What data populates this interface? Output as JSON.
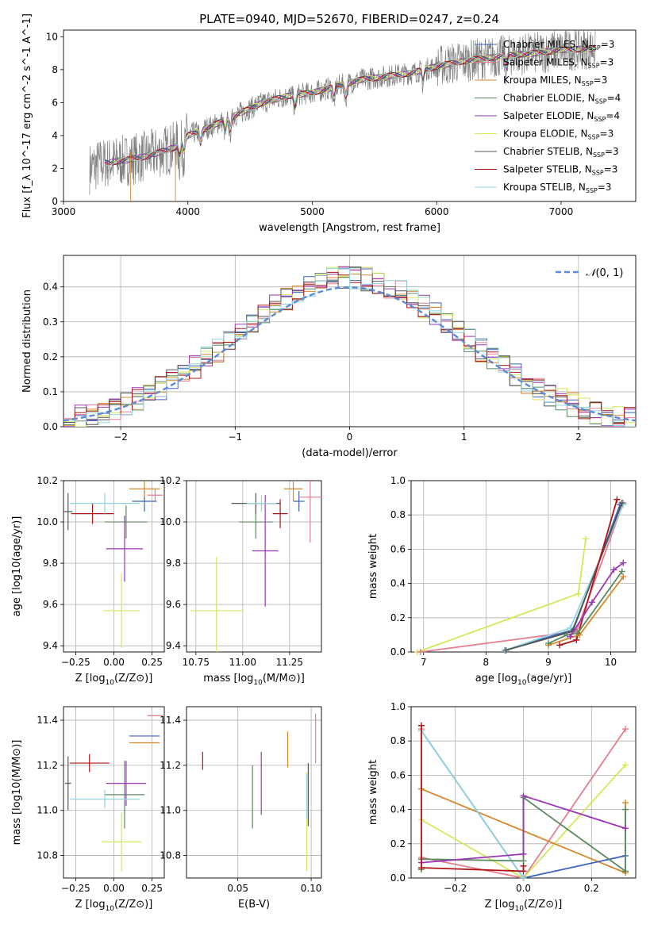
{
  "figure": {
    "title": "PLATE=0940, MJD=52670, FIBERID=0247, z=0.24"
  },
  "models": [
    {
      "name": "Chabrier MILES, N_SSP=3",
      "prefix": "Chabrier MILES, N",
      "sub": "SSP",
      "suffix": "=3",
      "color": "#3a63c0"
    },
    {
      "name": "Salpeter MILES, N_SSP=3",
      "prefix": "Salpeter MILES, N",
      "sub": "SSP",
      "suffix": "=3",
      "color": "#e77c8e"
    },
    {
      "name": "Kroupa MILES, N_SSP=3",
      "prefix": "Kroupa MILES, N",
      "sub": "SSP",
      "suffix": "=3",
      "color": "#d7872a"
    },
    {
      "name": "Chabrier ELODIE, N_SSP=4",
      "prefix": "Chabrier ELODIE, N",
      "sub": "SSP",
      "suffix": "=4",
      "color": "#5b8a61"
    },
    {
      "name": "Salpeter ELODIE, N_SSP=4",
      "prefix": "Salpeter ELODIE, N",
      "sub": "SSP",
      "suffix": "=4",
      "color": "#9b37b7"
    },
    {
      "name": "Kroupa ELODIE, N_SSP=3",
      "prefix": "Kroupa ELODIE, N",
      "sub": "SSP",
      "suffix": "=3",
      "color": "#d4e85a"
    },
    {
      "name": "Chabrier STELIB, N_SSP=3",
      "prefix": "Chabrier STELIB, N",
      "sub": "SSP",
      "suffix": "=3",
      "color": "#555555"
    },
    {
      "name": "Salpeter STELIB, N_SSP=3",
      "prefix": "Salpeter STELIB, N",
      "sub": "SSP",
      "suffix": "=3",
      "color": "#b01515"
    },
    {
      "name": "Kroupa STELIB, N_SSP=3",
      "prefix": "Kroupa STELIB, N",
      "sub": "SSP",
      "suffix": "=3",
      "color": "#8fd4e0"
    }
  ],
  "chart_data": [
    {
      "id": "spectrum",
      "type": "line",
      "title": "PLATE=0940, MJD=52670, FIBERID=0247, z=0.24",
      "xlabel": "wavelength [Angstrom, rest frame]",
      "ylabel": "Flux [f_λ 10^-17 erg cm^-2 s^-1 A^-1]",
      "xlim": [
        3000,
        7600
      ],
      "ylim": [
        0,
        10.4
      ],
      "xticks": [
        3000,
        4000,
        5000,
        6000,
        7000
      ],
      "yticks": [
        0,
        2,
        4,
        6,
        8,
        10
      ],
      "grid": false,
      "legend": "upper right",
      "data_series": {
        "name": "data",
        "color": "#808080",
        "wavelength_range": [
          3210,
          7280
        ]
      },
      "model_continuum": {
        "x": [
          3210,
          3300,
          3500,
          3700,
          3900,
          4000,
          4200,
          4400,
          4600,
          4800,
          5000,
          5200,
          5400,
          5600,
          5800,
          6000,
          6200,
          6400,
          6600,
          6800,
          7000,
          7280
        ],
        "y": [
          2.0,
          2.3,
          2.5,
          2.8,
          3.3,
          4.0,
          4.6,
          5.3,
          6.0,
          6.4,
          6.6,
          7.0,
          7.4,
          7.6,
          7.8,
          8.2,
          8.5,
          8.7,
          8.9,
          9.0,
          9.2,
          9.3
        ]
      }
    },
    {
      "id": "residuals",
      "type": "histogram",
      "xlabel": "(data-model)/error",
      "ylabel": "Normed distribution",
      "xlim": [
        -2.5,
        2.5
      ],
      "ylim": [
        0,
        0.49
      ],
      "xticks": [
        -2,
        -1,
        0,
        1,
        2
      ],
      "yticks": [
        0.0,
        0.1,
        0.2,
        0.3,
        0.4
      ],
      "grid": true,
      "legend": "upper right",
      "normal_curve": {
        "label": "N(0,1)",
        "label_script": "𝒩",
        "label_args": "(0, 1)",
        "color": "#5b8bd6",
        "mean": 0,
        "sigma": 1
      },
      "bin_width": 0.1
    },
    {
      "id": "age_vs_Z",
      "type": "errorbar",
      "xlabel": "Z [log10(Z/Z⊙)]",
      "xlabel_main": "Z [log",
      "xlabel_sub": "10",
      "xlabel_tail": "(Z/Z⊙)]",
      "ylabel": "age [log10(age/yr)]",
      "xlim": [
        -0.33,
        0.33
      ],
      "ylim": [
        9.37,
        10.2
      ],
      "xticks": [
        -0.25,
        0.0,
        0.25
      ],
      "xticklabels": [
        "−0.25",
        "0.00",
        "0.25"
      ],
      "yticks": [
        9.4,
        9.6,
        9.8,
        10.0,
        10.2
      ],
      "yticklabels": [
        "9.4",
        "9.6",
        "9.8",
        "10.0",
        "10.2"
      ],
      "points": [
        {
          "model": 0,
          "x": 0.2,
          "xerr": 0.08,
          "y": 10.1,
          "yerr": 0.05
        },
        {
          "model": 1,
          "x": 0.27,
          "xerr": 0.05,
          "y": 10.13,
          "yerr": 0.03
        },
        {
          "model": 2,
          "x": 0.2,
          "xerr": 0.1,
          "y": 10.16,
          "yerr": 0.04
        },
        {
          "model": 3,
          "x": 0.08,
          "xerr": 0.14,
          "y": 10.0,
          "yerr": 0.08
        },
        {
          "model": 4,
          "x": 0.07,
          "xerr": 0.12,
          "y": 9.87,
          "yerr": 0.16
        },
        {
          "model": 5,
          "x": 0.05,
          "xerr": 0.12,
          "y": 9.57,
          "yerr": 0.18
        },
        {
          "model": 6,
          "x": -0.3,
          "xerr": 0.03,
          "y": 10.05,
          "yerr": 0.09
        },
        {
          "model": 7,
          "x": -0.14,
          "xerr": 0.14,
          "y": 10.04,
          "yerr": 0.05
        },
        {
          "model": 8,
          "x": -0.06,
          "xerr": 0.23,
          "y": 10.09,
          "yerr": 0.05
        }
      ]
    },
    {
      "id": "age_vs_mass",
      "type": "errorbar",
      "xlabel": "mass [log10(M/M⊙)]",
      "xlabel_main": "mass [log",
      "xlabel_sub": "10",
      "xlabel_tail": "(M/M⊙)]",
      "ylabel": "",
      "xlim": [
        10.7,
        11.42
      ],
      "ylim": [
        9.37,
        10.2
      ],
      "xticks": [
        10.75,
        11.0,
        11.25
      ],
      "xticklabels": [
        "10.75",
        "11.00",
        "11.25"
      ],
      "yticks": [
        9.4,
        9.6,
        9.8,
        10.0,
        10.2
      ],
      "yticklabels": [
        "9.4",
        "9.6",
        "9.8",
        "10.0",
        "10.2"
      ],
      "points": [
        {
          "model": 0,
          "x": 11.3,
          "xerr": 0.03,
          "y": 10.1,
          "yerr": 0.05
        },
        {
          "model": 1,
          "x": 11.36,
          "xerr": 0.06,
          "y": 10.12,
          "yerr": 0.22
        },
        {
          "model": 2,
          "x": 11.27,
          "xerr": 0.05,
          "y": 10.16,
          "yerr": 0.06
        },
        {
          "model": 3,
          "x": 11.07,
          "xerr": 0.09,
          "y": 10.0,
          "yerr": 0.08
        },
        {
          "model": 4,
          "x": 11.12,
          "xerr": 0.07,
          "y": 9.86,
          "yerr": 0.27
        },
        {
          "model": 5,
          "x": 10.86,
          "xerr": 0.14,
          "y": 9.57,
          "yerr": 0.26
        },
        {
          "model": 6,
          "x": 11.07,
          "xerr": 0.13,
          "y": 10.09,
          "yerr": 0.05
        },
        {
          "model": 7,
          "x": 11.2,
          "xerr": 0.04,
          "y": 10.04,
          "yerr": 0.07
        },
        {
          "model": 8,
          "x": 11.1,
          "xerr": 0.08,
          "y": 10.09,
          "yerr": 0.04
        }
      ]
    },
    {
      "id": "massweight_vs_age",
      "type": "line",
      "xlabel": "age [log10(age/yr)]",
      "xlabel_main": "age  [log",
      "xlabel_sub": "10",
      "xlabel_tail": "(age/yr)]",
      "ylabel": "mass weight",
      "xlim": [
        6.8,
        10.4
      ],
      "ylim": [
        0,
        1
      ],
      "xticks": [
        7,
        8,
        9,
        10
      ],
      "xticklabels": [
        "7",
        "8",
        "9",
        "10"
      ],
      "yticks": [
        0.0,
        0.2,
        0.4,
        0.6,
        0.8,
        1.0
      ],
      "yticklabels": [
        "0.0",
        "0.2",
        "0.4",
        "0.6",
        "0.8",
        "1.0"
      ],
      "grid": true,
      "series": [
        {
          "model": 5,
          "x": [
            6.9,
            9.48,
            9.6
          ],
          "y": [
            0.0,
            0.34,
            0.66
          ]
        },
        {
          "model": 1,
          "x": [
            6.95,
            9.45,
            10.2
          ],
          "y": [
            0.0,
            0.12,
            0.87
          ]
        },
        {
          "model": 0,
          "x": [
            8.3,
            9.4,
            10.15
          ],
          "y": [
            0.01,
            0.13,
            0.86
          ]
        },
        {
          "model": 8,
          "x": [
            8.3,
            9.35,
            10.2
          ],
          "y": [
            0.01,
            0.14,
            0.86
          ]
        },
        {
          "model": 6,
          "x": [
            8.32,
            9.38,
            10.18
          ],
          "y": [
            0.01,
            0.12,
            0.87
          ]
        },
        {
          "model": 7,
          "x": [
            9.18,
            9.45,
            10.1
          ],
          "y": [
            0.04,
            0.07,
            0.89
          ]
        },
        {
          "model": 2,
          "x": [
            9.0,
            9.5,
            10.2
          ],
          "y": [
            0.04,
            0.1,
            0.44
          ]
        },
        {
          "model": 3,
          "x": [
            9.0,
            9.3,
            9.47,
            10.18
          ],
          "y": [
            0.05,
            0.1,
            0.11,
            0.47
          ]
        },
        {
          "model": 4,
          "x": [
            9.35,
            9.7,
            10.05,
            10.2
          ],
          "y": [
            0.09,
            0.29,
            0.48,
            0.52
          ]
        }
      ]
    },
    {
      "id": "mass_vs_Z",
      "type": "errorbar",
      "xlabel": "Z [log10(Z/Z⊙)]",
      "xlabel_main": "Z [log",
      "xlabel_sub": "10",
      "xlabel_tail": "(Z/Z⊙)]",
      "ylabel": "mass [log10(M/M⊙)]",
      "xlim": [
        -0.33,
        0.33
      ],
      "ylim": [
        10.7,
        11.46
      ],
      "xticks": [
        -0.25,
        0.0,
        0.25
      ],
      "xticklabels": [
        "−0.25",
        "0.00",
        "0.25"
      ],
      "yticks": [
        10.8,
        11.0,
        11.2,
        11.4
      ],
      "yticklabels": [
        "10.8",
        "11.0",
        "11.2",
        "11.4"
      ],
      "points": [
        {
          "model": 0,
          "x": 0.2,
          "xerr": 0.1,
          "y": 11.33,
          "yerr": 0.0
        },
        {
          "model": 1,
          "x": 0.27,
          "xerr": 0.05,
          "y": 11.42,
          "yerr": 0.0
        },
        {
          "model": 2,
          "x": 0.2,
          "xerr": 0.1,
          "y": 11.3,
          "yerr": 0.0
        },
        {
          "model": 3,
          "x": 0.07,
          "xerr": 0.13,
          "y": 11.07,
          "yerr": 0.15
        },
        {
          "model": 4,
          "x": 0.08,
          "xerr": 0.13,
          "y": 11.12,
          "yerr": 0.1
        },
        {
          "model": 5,
          "x": 0.05,
          "xerr": 0.13,
          "y": 10.86,
          "yerr": 0.13
        },
        {
          "model": 6,
          "x": -0.3,
          "xerr": 0.02,
          "y": 11.12,
          "yerr": 0.12
        },
        {
          "model": 7,
          "x": -0.16,
          "xerr": 0.13,
          "y": 11.21,
          "yerr": 0.04
        },
        {
          "model": 8,
          "x": -0.06,
          "xerr": 0.23,
          "y": 11.05,
          "yerr": 0.04
        }
      ]
    },
    {
      "id": "mass_vs_EBV",
      "type": "errorbar",
      "xlabel": "E(B-V)",
      "ylabel": "",
      "xlim": [
        0.015,
        0.107
      ],
      "ylim": [
        10.7,
        11.46
      ],
      "xticks": [
        0.05,
        0.1
      ],
      "xticklabels": [
        "0.05",
        "0.10"
      ],
      "yticks": [
        10.8,
        11.0,
        11.2,
        11.4
      ],
      "yticklabels": [
        "10.8",
        "11.0",
        "11.2",
        "11.4"
      ],
      "points": [
        {
          "model": 7,
          "x": 0.026,
          "y": 11.22,
          "yerr": 0.04
        },
        {
          "model": 3,
          "x": 0.06,
          "y": 11.06,
          "yerr": 0.14
        },
        {
          "model": 4,
          "x": 0.066,
          "y": 11.12,
          "yerr": 0.14
        },
        {
          "model": 2,
          "x": 0.084,
          "y": 11.27,
          "yerr": 0.08
        },
        {
          "model": 5,
          "x": 0.097,
          "y": 10.95,
          "yerr": 0.22
        },
        {
          "model": 6,
          "x": 0.098,
          "y": 11.07,
          "yerr": 0.14
        },
        {
          "model": 8,
          "x": 0.097,
          "y": 11.06,
          "yerr": 0.1
        },
        {
          "model": 1,
          "x": 0.103,
          "y": 11.32,
          "yerr": 0.11
        }
      ]
    },
    {
      "id": "massweight_vs_Z",
      "type": "line",
      "xlabel": "Z [log10(Z/Z⊙)]",
      "xlabel_main": "Z [log",
      "xlabel_sub": "10",
      "xlabel_tail": "(Z/Z⊙)]",
      "ylabel": "mass weight",
      "xlim": [
        -0.33,
        0.33
      ],
      "ylim": [
        0,
        1
      ],
      "xticks": [
        -0.2,
        0.0,
        0.2
      ],
      "xticklabels": [
        "−0.2",
        "0.0",
        "0.2"
      ],
      "yticks": [
        0.0,
        0.2,
        0.4,
        0.6,
        0.8,
        1.0
      ],
      "yticklabels": [
        "0.0",
        "0.2",
        "0.4",
        "0.6",
        "0.8",
        "1.0"
      ],
      "grid": true,
      "series": [
        {
          "model": 1,
          "x": [
            -0.3,
            -0.3,
            0.0,
            0.3
          ],
          "y": [
            0.87,
            0.12,
            0.0,
            0.87
          ]
        },
        {
          "model": 5,
          "x": [
            -0.3,
            0.0,
            0.3
          ],
          "y": [
            0.34,
            0.0,
            0.66
          ]
        },
        {
          "model": 2,
          "x": [
            -0.3,
            0.3,
            0.3
          ],
          "y": [
            0.52,
            0.03,
            0.44
          ]
        },
        {
          "model": 0,
          "x": [
            -0.3,
            0.0,
            0.3
          ],
          "y": [
            0.86,
            0.0,
            0.13
          ]
        },
        {
          "model": 8,
          "x": [
            -0.3,
            0.0
          ],
          "y": [
            0.86,
            0.0
          ]
        },
        {
          "model": 3,
          "x": [
            -0.3,
            -0.3,
            0.0,
            0.0,
            0.3,
            0.3
          ],
          "y": [
            0.05,
            0.11,
            0.1,
            0.47,
            0.04,
            0.4
          ]
        },
        {
          "model": 4,
          "x": [
            -0.3,
            0.0,
            0.0,
            0.3
          ],
          "y": [
            0.09,
            0.14,
            0.48,
            0.29
          ]
        },
        {
          "model": 7,
          "x": [
            -0.3,
            -0.3,
            0.0,
            0.0
          ],
          "y": [
            0.89,
            0.06,
            0.04,
            0.07
          ]
        }
      ]
    }
  ]
}
